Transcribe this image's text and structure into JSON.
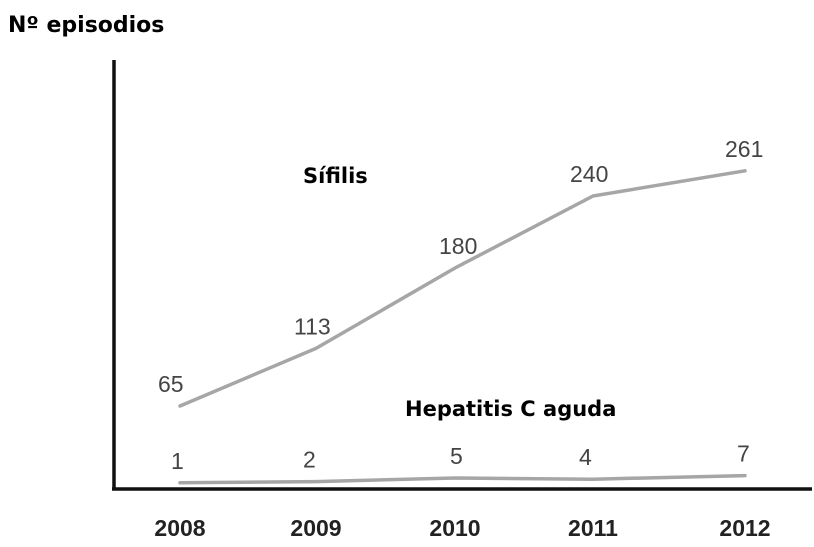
{
  "chart_data": {
    "type": "line",
    "title": "",
    "ylabel": "Nº episodios",
    "xlabel": "",
    "categories": [
      "2008",
      "2009",
      "2010",
      "2011",
      "2012"
    ],
    "series": [
      {
        "name": "Sífilis",
        "values": [
          65,
          113,
          180,
          240,
          261
        ]
      },
      {
        "name": "Hepatitis C aguda",
        "values": [
          1,
          2,
          5,
          4,
          7
        ]
      }
    ],
    "grid": false,
    "legend": "none",
    "colors": {
      "line": "#a6a6a6",
      "axis": "#111111",
      "text": "#000000"
    }
  }
}
